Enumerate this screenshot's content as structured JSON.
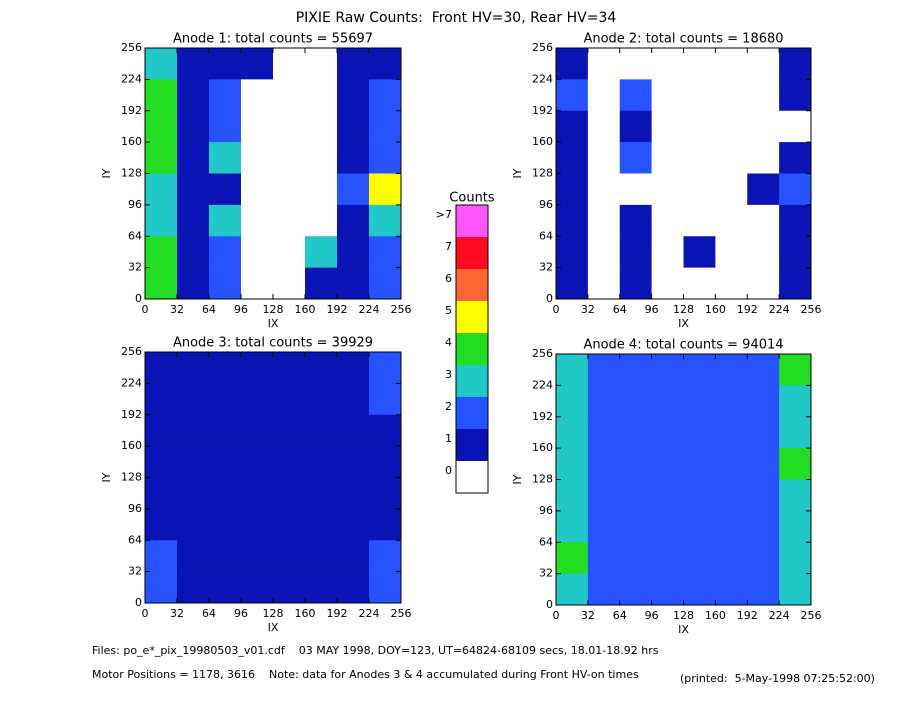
{
  "title": "PIXIE Raw Counts:  Front HV=30, Rear HV=34",
  "colorbar": {
    "title": "Counts",
    "labels": [
      "0",
      "1",
      "2",
      "3",
      "4",
      "5",
      "6",
      "7",
      ">7"
    ],
    "colors": [
      "#ffffff",
      "#0a14b4",
      "#2652ff",
      "#20c8c8",
      "#22dd22",
      "#ffff00",
      "#ff6633",
      "#ff0a1e",
      "#ff55ff"
    ]
  },
  "chart_data": [
    {
      "type": "heatmap",
      "title": "Anode 1: total counts = 55697",
      "xlabel": "IX",
      "ylabel": "IY",
      "xlim": [
        0,
        256
      ],
      "ylim": [
        0,
        256
      ],
      "xticks": [
        0,
        32,
        64,
        96,
        128,
        160,
        192,
        224,
        256
      ],
      "yticks": [
        0,
        32,
        64,
        96,
        128,
        160,
        192,
        224,
        256
      ],
      "values": [
        [
          3,
          1,
          1,
          1,
          0,
          0,
          1,
          1
        ],
        [
          4,
          1,
          2,
          0,
          0,
          0,
          1,
          2
        ],
        [
          4,
          1,
          2,
          0,
          0,
          0,
          1,
          2
        ],
        [
          4,
          1,
          3,
          0,
          0,
          0,
          1,
          2
        ],
        [
          3,
          1,
          1,
          0,
          0,
          0,
          2,
          5
        ],
        [
          3,
          1,
          3,
          0,
          0,
          0,
          1,
          3
        ],
        [
          4,
          1,
          2,
          0,
          0,
          3,
          1,
          2
        ],
        [
          4,
          1,
          2,
          0,
          0,
          1,
          1,
          2
        ]
      ]
    },
    {
      "type": "heatmap",
      "title": "Anode 2: total counts = 18680",
      "xlabel": "IX",
      "ylabel": "IY",
      "xlim": [
        0,
        256
      ],
      "ylim": [
        0,
        256
      ],
      "xticks": [
        0,
        32,
        64,
        96,
        128,
        160,
        192,
        224,
        256
      ],
      "yticks": [
        0,
        32,
        64,
        96,
        128,
        160,
        192,
        224,
        256
      ],
      "values": [
        [
          1,
          0,
          0,
          0,
          0,
          0,
          0,
          1
        ],
        [
          2,
          0,
          2,
          0,
          0,
          0,
          0,
          1
        ],
        [
          1,
          0,
          1,
          0,
          0,
          0,
          0,
          0
        ],
        [
          1,
          0,
          2,
          0,
          0,
          0,
          0,
          1
        ],
        [
          1,
          0,
          0,
          0,
          0,
          0,
          1,
          2
        ],
        [
          1,
          0,
          1,
          0,
          0,
          0,
          0,
          1
        ],
        [
          1,
          0,
          1,
          0,
          1,
          0,
          0,
          1
        ],
        [
          1,
          0,
          1,
          0,
          0,
          0,
          0,
          1
        ]
      ]
    },
    {
      "type": "heatmap",
      "title": "Anode 3: total counts = 39929",
      "xlabel": "IX",
      "ylabel": "IY",
      "xlim": [
        0,
        256
      ],
      "ylim": [
        0,
        256
      ],
      "xticks": [
        0,
        32,
        64,
        96,
        128,
        160,
        192,
        224,
        256
      ],
      "yticks": [
        0,
        32,
        64,
        96,
        128,
        160,
        192,
        224,
        256
      ],
      "values": [
        [
          1,
          1,
          1,
          1,
          1,
          1,
          1,
          2
        ],
        [
          1,
          1,
          1,
          1,
          1,
          1,
          1,
          2
        ],
        [
          1,
          1,
          1,
          1,
          1,
          1,
          1,
          1
        ],
        [
          1,
          1,
          1,
          1,
          1,
          1,
          1,
          1
        ],
        [
          1,
          1,
          1,
          1,
          1,
          1,
          1,
          1
        ],
        [
          1,
          1,
          1,
          1,
          1,
          1,
          1,
          1
        ],
        [
          2,
          1,
          1,
          1,
          1,
          1,
          1,
          2
        ],
        [
          2,
          1,
          1,
          1,
          1,
          1,
          1,
          2
        ]
      ]
    },
    {
      "type": "heatmap",
      "title": "Anode 4: total counts = 94014",
      "xlabel": "IX",
      "ylabel": "IY",
      "xlim": [
        0,
        256
      ],
      "ylim": [
        0,
        256
      ],
      "xticks": [
        0,
        32,
        64,
        96,
        128,
        160,
        192,
        224,
        256
      ],
      "yticks": [
        0,
        32,
        64,
        96,
        128,
        160,
        192,
        224,
        256
      ],
      "values": [
        [
          3,
          2,
          2,
          2,
          2,
          2,
          2,
          4
        ],
        [
          3,
          2,
          2,
          2,
          2,
          2,
          2,
          3
        ],
        [
          3,
          2,
          2,
          2,
          2,
          2,
          2,
          3
        ],
        [
          3,
          2,
          2,
          2,
          2,
          2,
          2,
          4
        ],
        [
          3,
          2,
          2,
          2,
          2,
          2,
          2,
          3
        ],
        [
          3,
          2,
          2,
          2,
          2,
          2,
          2,
          3
        ],
        [
          4,
          2,
          2,
          2,
          2,
          2,
          2,
          3
        ],
        [
          3,
          2,
          2,
          2,
          2,
          2,
          2,
          3
        ]
      ]
    }
  ],
  "footer": {
    "files": "Files: po_e*_pix_19980503_v01.cdf    03 MAY 1998, DOY=123, UT=64824-68109 secs, 18.01-18.92 hrs",
    "motor": "Motor Positions = 1178, 3616    Note: data for Anodes 3 & 4 accumulated during Front HV-on times",
    "printed": "(printed:  5-May-1998 07:25:52:00)"
  }
}
